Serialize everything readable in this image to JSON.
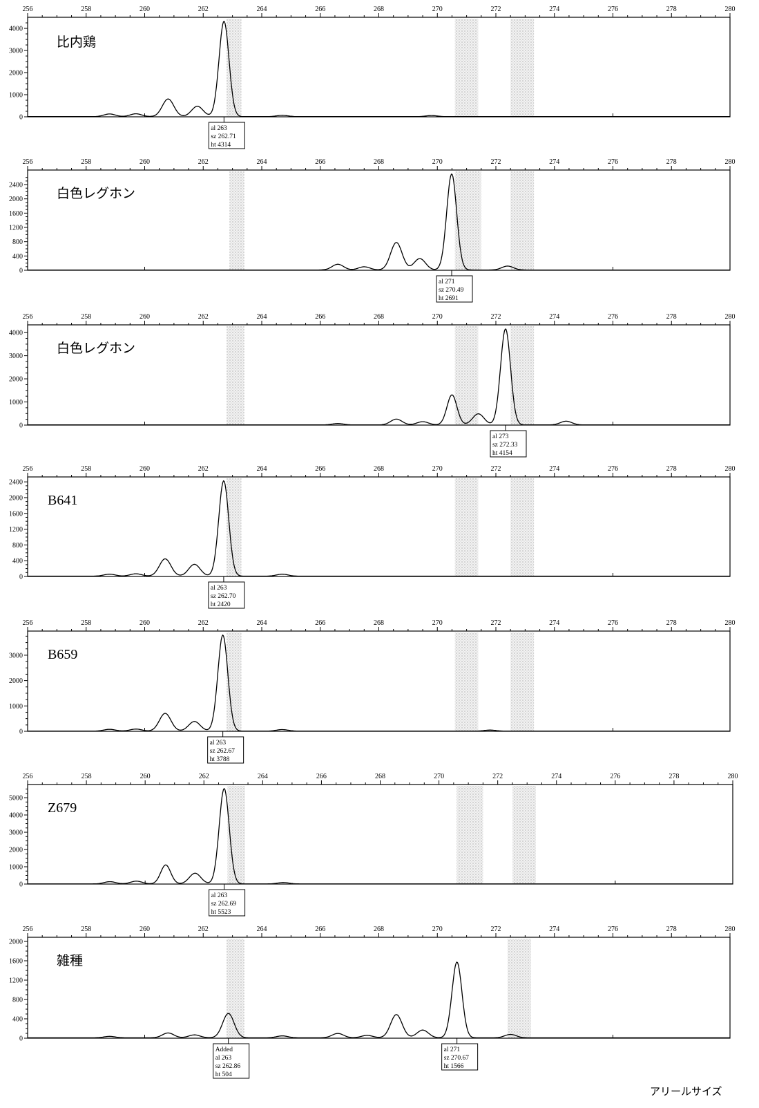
{
  "axis_label": "アリールサイズ",
  "chart_data": [
    {
      "type": "line",
      "title": "比内鶏",
      "x_ticks": [
        "256",
        "258",
        "260",
        "262",
        "264",
        "266",
        "268",
        "270",
        "272",
        "274",
        "276",
        "278",
        "280"
      ],
      "xlim": [
        256,
        280
      ],
      "y_ticks": [
        0,
        1000,
        2000,
        3000,
        4000
      ],
      "ylim": [
        0,
        4314
      ],
      "bins": [
        [
          262.8,
          263.3
        ],
        [
          270.6,
          271.4
        ],
        [
          272.5,
          273.3
        ]
      ],
      "peaks": [
        {
          "x": 258.8,
          "y": 120
        },
        {
          "x": 259.7,
          "y": 130
        },
        {
          "x": 260.8,
          "y": 800
        },
        {
          "x": 261.8,
          "y": 470
        },
        {
          "x": 262.71,
          "y": 4314
        },
        {
          "x": 264.7,
          "y": 60
        },
        {
          "x": 269.8,
          "y": 50
        }
      ],
      "callout": {
        "lines": [
          "al 263",
          "sz 262.71",
          "ht 4314"
        ]
      }
    },
    {
      "type": "line",
      "title": "白色レグホン",
      "x_ticks": [
        "256",
        "258",
        "260",
        "262",
        "264",
        "266",
        "268",
        "270",
        "272",
        "274",
        "276",
        "278",
        "280"
      ],
      "xlim": [
        256,
        280
      ],
      "y_ticks": [
        0,
        400,
        800,
        1200,
        1600,
        2000,
        2400
      ],
      "ylim": [
        0,
        2691
      ],
      "bins": [
        [
          262.9,
          263.4
        ],
        [
          270.6,
          271.5
        ],
        [
          272.5,
          273.3
        ]
      ],
      "peaks": [
        {
          "x": 266.6,
          "y": 160
        },
        {
          "x": 267.5,
          "y": 90
        },
        {
          "x": 268.6,
          "y": 770
        },
        {
          "x": 269.4,
          "y": 320
        },
        {
          "x": 270.49,
          "y": 2691
        },
        {
          "x": 272.4,
          "y": 110
        }
      ],
      "callout": {
        "lines": [
          "al 271",
          "sz 270.49",
          "ht 2691"
        ]
      }
    },
    {
      "type": "line",
      "title": "白色レグホン",
      "x_ticks": [
        "256",
        "258",
        "260",
        "262",
        "264",
        "266",
        "268",
        "270",
        "272",
        "274",
        "276",
        "278",
        "280"
      ],
      "xlim": [
        256,
        280
      ],
      "y_ticks": [
        0,
        1000,
        2000,
        3000,
        4000
      ],
      "ylim": [
        0,
        4154
      ],
      "bins": [
        [
          262.8,
          263.4
        ],
        [
          270.6,
          271.4
        ],
        [
          272.5,
          273.3
        ]
      ],
      "peaks": [
        {
          "x": 266.6,
          "y": 60
        },
        {
          "x": 268.6,
          "y": 250
        },
        {
          "x": 269.5,
          "y": 140
        },
        {
          "x": 270.5,
          "y": 1300
        },
        {
          "x": 271.4,
          "y": 480
        },
        {
          "x": 272.33,
          "y": 4154
        },
        {
          "x": 274.4,
          "y": 160
        }
      ],
      "callout": {
        "lines": [
          "al 273",
          "sz 272.33",
          "ht 4154"
        ]
      }
    },
    {
      "type": "line",
      "title": "B641",
      "x_ticks": [
        "256",
        "258",
        "260",
        "262",
        "264",
        "266",
        "268",
        "270",
        "272",
        "274",
        "276",
        "278",
        "280"
      ],
      "xlim": [
        256,
        280
      ],
      "y_ticks": [
        0,
        400,
        800,
        1200,
        1600,
        2000,
        2400
      ],
      "ylim": [
        0,
        2420
      ],
      "bins": [
        [
          262.8,
          263.3
        ],
        [
          270.6,
          271.4
        ],
        [
          272.5,
          273.3
        ]
      ],
      "peaks": [
        {
          "x": 258.8,
          "y": 50
        },
        {
          "x": 259.7,
          "y": 60
        },
        {
          "x": 260.7,
          "y": 440
        },
        {
          "x": 261.7,
          "y": 300
        },
        {
          "x": 262.7,
          "y": 2420
        },
        {
          "x": 264.7,
          "y": 50
        }
      ],
      "callout": {
        "lines": [
          "al 263",
          "sz 262.70",
          "ht 2420"
        ]
      }
    },
    {
      "type": "line",
      "title": "B659",
      "x_ticks": [
        "256",
        "258",
        "260",
        "262",
        "264",
        "266",
        "268",
        "270",
        "272",
        "274",
        "276",
        "278",
        "280"
      ],
      "xlim": [
        256,
        280
      ],
      "y_ticks": [
        0,
        1000,
        2000,
        3000
      ],
      "ylim": [
        0,
        3788
      ],
      "bins": [
        [
          262.8,
          263.3
        ],
        [
          270.6,
          271.4
        ],
        [
          272.5,
          273.3
        ]
      ],
      "peaks": [
        {
          "x": 258.8,
          "y": 70
        },
        {
          "x": 259.7,
          "y": 80
        },
        {
          "x": 260.7,
          "y": 700
        },
        {
          "x": 261.7,
          "y": 380
        },
        {
          "x": 262.67,
          "y": 3788
        },
        {
          "x": 264.7,
          "y": 60
        },
        {
          "x": 271.8,
          "y": 40
        }
      ],
      "callout": {
        "lines": [
          "al 263",
          "sz 262.67",
          "ht 3788"
        ]
      }
    },
    {
      "type": "line",
      "title": "Z679",
      "x_ticks": [
        "256",
        "258",
        "260",
        "262",
        "264",
        "266",
        "268",
        "270",
        "272",
        "274",
        "276",
        "278",
        "280"
      ],
      "xlim": [
        256,
        280
      ],
      "y_ticks": [
        0,
        1000,
        2000,
        3000,
        4000,
        5000
      ],
      "ylim": [
        0,
        5523
      ],
      "bins": [
        [
          262.8,
          263.4
        ],
        [
          270.6,
          271.5
        ],
        [
          272.5,
          273.3
        ]
      ],
      "peaks": [
        {
          "x": 258.8,
          "y": 130
        },
        {
          "x": 259.7,
          "y": 160
        },
        {
          "x": 260.7,
          "y": 1100
        },
        {
          "x": 261.7,
          "y": 620
        },
        {
          "x": 262.69,
          "y": 5523
        },
        {
          "x": 264.7,
          "y": 80
        }
      ],
      "callout": {
        "lines": [
          "al 263",
          "sz 262.69",
          "ht 5523"
        ]
      }
    },
    {
      "type": "line",
      "title": "雑種",
      "x_ticks": [
        "256",
        "258",
        "260",
        "262",
        "264",
        "266",
        "268",
        "270",
        "272",
        "274",
        "276",
        "278",
        "280"
      ],
      "xlim": [
        256,
        280
      ],
      "y_ticks": [
        0,
        400,
        800,
        1200,
        1600,
        2000
      ],
      "ylim": [
        0,
        2000
      ],
      "bins": [
        [
          262.8,
          263.4
        ],
        [
          272.4,
          273.2
        ]
      ],
      "peaks": [
        {
          "x": 258.8,
          "y": 30
        },
        {
          "x": 260.8,
          "y": 100
        },
        {
          "x": 261.7,
          "y": 60
        },
        {
          "x": 262.86,
          "y": 504
        },
        {
          "x": 264.7,
          "y": 40
        },
        {
          "x": 266.6,
          "y": 90
        },
        {
          "x": 267.6,
          "y": 50
        },
        {
          "x": 268.6,
          "y": 480
        },
        {
          "x": 269.5,
          "y": 160
        },
        {
          "x": 270.67,
          "y": 1566
        },
        {
          "x": 272.5,
          "y": 70
        }
      ],
      "callout": {
        "lines": [
          "Added",
          "al 263",
          "sz 262.86",
          "ht 504"
        ]
      }
    }
  ]
}
